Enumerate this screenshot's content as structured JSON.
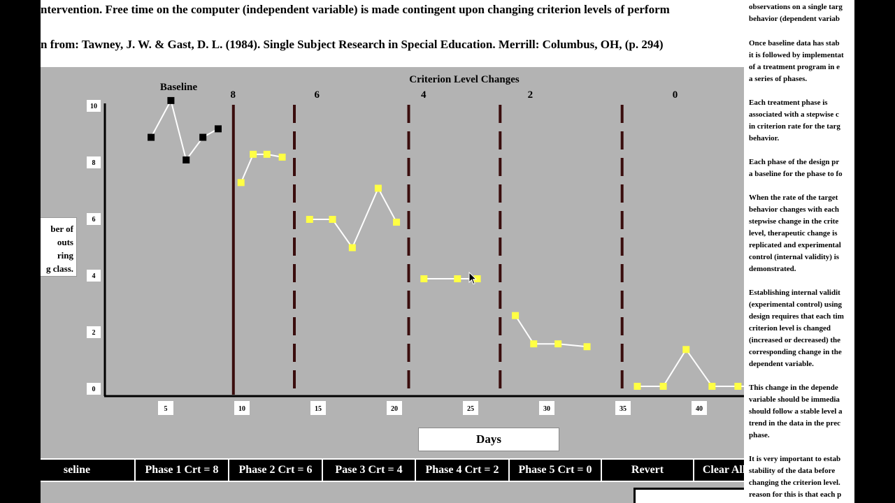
{
  "header": {
    "line1": "ntervention.  Free time on the computer (independent variable) is made contingent upon changing criterion levels of perform",
    "line2": "n from:  Tawney, J. W. & Gast, D. L. (1984). Single Subject Research in Special Education.  Merrill: Columbus, OH, (p. 294)"
  },
  "ylabel_lines": [
    "ber of",
    "outs",
    "ring",
    "g class."
  ],
  "xlabel": "Days",
  "buttons": [
    {
      "label": "seline"
    },
    {
      "label": "Phase 1 Crt = 8"
    },
    {
      "label": "Phase 2 Crt = 6"
    },
    {
      "label": "Pase 3 Crt = 4"
    },
    {
      "label": "Phase 4 Crt = 2"
    },
    {
      "label": "Phase 5 Crt = 0"
    },
    {
      "label": "Revert"
    },
    {
      "label": "Clear All Data"
    }
  ],
  "sidebar_paragraphs": [
    [
      "observations on a single targ",
      "behavior (dependent variab"
    ],
    [
      "Once baseline data has stab",
      "it is followed by implementat",
      "of a treatment program in e",
      "a series of phases."
    ],
    [
      "Each treatment phase is",
      "associated with a stepwise c",
      "in criterion rate for the targ",
      "behavior."
    ],
    [
      "Each phase of the design pr",
      "a baseline for the phase to fo"
    ],
    [
      "When the rate of the target",
      "behavior changes with each",
      "stepwise change in the crite",
      "level, therapeutic change is",
      "replicated and experimental",
      "control (internal validity) is",
      "demonstrated."
    ],
    [
      "Establishing internal validit",
      "(experimental control) using",
      "design requires that each tim",
      "criterion level is changed",
      "(increased or decreased) the",
      "corresponding change in the",
      "dependent variable."
    ],
    [
      "This change in the depende",
      "variable should be immedia",
      "should follow a stable level a",
      "trend in the data in the prec",
      "phase."
    ],
    [
      "It is very important to estab",
      "stability of the data before",
      "changing the criterion level.",
      "reason for this is that each p"
    ]
  ],
  "chart_data": {
    "type": "scatter",
    "title": "Criterion Level Changes",
    "xlabel": "Days",
    "ylabel": "",
    "xlim": [
      0,
      44
    ],
    "ylim": [
      0,
      10
    ],
    "y_ticks": [
      0,
      2,
      4,
      6,
      8,
      10
    ],
    "x_ticks": [
      5,
      10,
      15,
      20,
      25,
      30,
      35,
      40
    ],
    "phase_labels": [
      {
        "label": "Baseline",
        "x": 2.5
      },
      {
        "label": "8",
        "x": 8.5
      },
      {
        "label": "6",
        "x": 14
      },
      {
        "label": "4",
        "x": 21
      },
      {
        "label": "2",
        "x": 28
      },
      {
        "label": "0",
        "x": 37.5
      }
    ],
    "phase_changes": [
      {
        "x": 6,
        "style": "solid"
      },
      {
        "x": 10,
        "style": "dashed"
      },
      {
        "x": 17.5,
        "style": "dashed"
      },
      {
        "x": 23.5,
        "style": "dashed"
      },
      {
        "x": 31.5,
        "style": "dashed"
      },
      {
        "x": 42.5,
        "style": "dashed"
      }
    ],
    "series": [
      {
        "color": "#000000",
        "points": [
          [
            0.6,
            8.9
          ],
          [
            1.9,
            10.2
          ],
          [
            2.9,
            8.1
          ],
          [
            4.0,
            8.9
          ],
          [
            5.0,
            9.2
          ]
        ]
      },
      {
        "color": "#ffff44",
        "points": [
          [
            6.5,
            7.3
          ],
          [
            7.3,
            8.3
          ],
          [
            8.2,
            8.3
          ],
          [
            9.2,
            8.2
          ]
        ]
      },
      {
        "color": "#ffff44",
        "points": [
          [
            11.0,
            6.0
          ],
          [
            12.5,
            6.0
          ],
          [
            13.8,
            5.0
          ],
          [
            15.5,
            7.1
          ],
          [
            16.7,
            5.9
          ]
        ]
      },
      {
        "color": "#ffff44",
        "points": [
          [
            18.5,
            3.9
          ],
          [
            20.7,
            3.9
          ],
          [
            22.0,
            3.9
          ]
        ]
      },
      {
        "color": "#ffff44",
        "points": [
          [
            24.5,
            2.6
          ],
          [
            25.7,
            1.6
          ],
          [
            27.3,
            1.6
          ],
          [
            29.2,
            1.5
          ]
        ]
      },
      {
        "color": "#ffff44",
        "points": [
          [
            32.5,
            0.1
          ],
          [
            34.2,
            0.1
          ],
          [
            35.7,
            1.4
          ],
          [
            37.4,
            0.1
          ],
          [
            39.1,
            0.1
          ],
          [
            40.9,
            0.1
          ]
        ]
      }
    ]
  }
}
